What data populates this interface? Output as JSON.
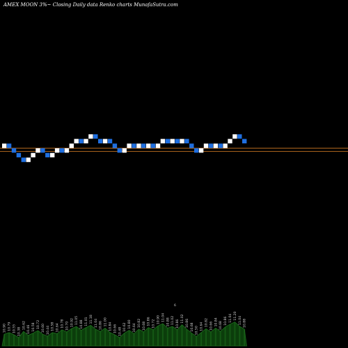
{
  "header": {
    "title": "AMEX  MOON  3%~  Closing Daily data  Renko  charts MunafaSutra.com"
  },
  "colors": {
    "background": "#000000",
    "brick_up": "#ffffff",
    "brick_down": "#1f6fe0",
    "support_line": "#c07020",
    "volume_fill": "#0b3d0b",
    "volume_edge": "#1d6e1d"
  },
  "chart_data": {
    "type": "renko",
    "brick_size_percent": 3,
    "reference_lines": [
      0.0,
      -0.68
    ],
    "bricks": [
      {
        "level": 1,
        "dir": "up"
      },
      {
        "level": 0,
        "dir": "down"
      },
      {
        "level": -1,
        "dir": "down"
      },
      {
        "level": -2,
        "dir": "down"
      },
      {
        "level": -3,
        "dir": "down"
      },
      {
        "level": -2,
        "dir": "up"
      },
      {
        "level": -1,
        "dir": "up"
      },
      {
        "level": 0,
        "dir": "up"
      },
      {
        "level": -1,
        "dir": "down"
      },
      {
        "level": -2,
        "dir": "down"
      },
      {
        "level": -1,
        "dir": "up"
      },
      {
        "level": 0,
        "dir": "up"
      },
      {
        "level": -1,
        "dir": "down"
      },
      {
        "level": 0,
        "dir": "up"
      },
      {
        "level": 1,
        "dir": "up"
      },
      {
        "level": 2,
        "dir": "up"
      },
      {
        "level": 1,
        "dir": "down"
      },
      {
        "level": 2,
        "dir": "up"
      },
      {
        "level": 3,
        "dir": "up"
      },
      {
        "level": 2,
        "dir": "down"
      },
      {
        "level": 1,
        "dir": "down"
      },
      {
        "level": 2,
        "dir": "up"
      },
      {
        "level": 1,
        "dir": "down"
      },
      {
        "level": 0,
        "dir": "down"
      },
      {
        "level": -1,
        "dir": "down"
      },
      {
        "level": 0,
        "dir": "up"
      },
      {
        "level": 1,
        "dir": "up"
      },
      {
        "level": 0,
        "dir": "down"
      },
      {
        "level": 1,
        "dir": "up"
      },
      {
        "level": 0,
        "dir": "down"
      },
      {
        "level": 1,
        "dir": "up"
      },
      {
        "level": 0,
        "dir": "down"
      },
      {
        "level": 1,
        "dir": "up"
      },
      {
        "level": 2,
        "dir": "up"
      },
      {
        "level": 1,
        "dir": "down"
      },
      {
        "level": 2,
        "dir": "up"
      },
      {
        "level": 1,
        "dir": "down"
      },
      {
        "level": 2,
        "dir": "up"
      },
      {
        "level": 1,
        "dir": "down"
      },
      {
        "level": 0,
        "dir": "down"
      },
      {
        "level": -1,
        "dir": "down"
      },
      {
        "level": 0,
        "dir": "up"
      },
      {
        "level": 1,
        "dir": "up"
      },
      {
        "level": 0,
        "dir": "down"
      },
      {
        "level": 1,
        "dir": "up"
      },
      {
        "level": 0,
        "dir": "down"
      },
      {
        "level": 1,
        "dir": "up"
      },
      {
        "level": 2,
        "dir": "up"
      },
      {
        "level": 3,
        "dir": "up"
      },
      {
        "level": 2,
        "dir": "down"
      },
      {
        "level": 1,
        "dir": "down"
      }
    ],
    "volume": [
      0.42,
      0.48,
      0.4,
      0.3,
      0.52,
      0.38,
      0.46,
      0.55,
      0.42,
      0.35,
      0.48,
      0.44,
      0.58,
      0.5,
      0.62,
      0.7,
      0.56,
      0.66,
      0.74,
      0.6,
      0.52,
      0.64,
      0.48,
      0.4,
      0.3,
      0.46,
      0.56,
      0.44,
      0.6,
      0.5,
      0.66,
      0.58,
      0.72,
      0.8,
      0.64,
      0.7,
      0.58,
      0.76,
      0.6,
      0.46,
      0.34,
      0.48,
      0.62,
      0.5,
      0.64,
      0.52,
      0.68,
      0.78,
      0.86,
      0.7,
      0.6
    ],
    "volume_labels": [
      "10.90",
      "10.79",
      "10.55",
      "10.38",
      "10.62",
      "10.46",
      "10.58",
      "10.72",
      "10.60",
      "10.44",
      "10.58",
      "10.64",
      "10.78",
      "10.70",
      "10.92",
      "11.05",
      "10.88",
      "11.01",
      "11.18",
      "11.04",
      "10.86",
      "11.00",
      "10.84",
      "10.66",
      "10.48",
      "10.62",
      "10.80",
      "10.64",
      "10.82",
      "10.68",
      "10.86",
      "10.72",
      "10.90",
      "11.04",
      "10.88",
      "11.02",
      "10.86",
      "11.02",
      "10.86",
      "10.68",
      "10.50",
      "10.64",
      "10.82",
      "10.66",
      "10.84",
      "10.68",
      "10.86",
      "11.04",
      "11.20",
      "11.04",
      "10.88"
    ],
    "marker_label": "6"
  }
}
